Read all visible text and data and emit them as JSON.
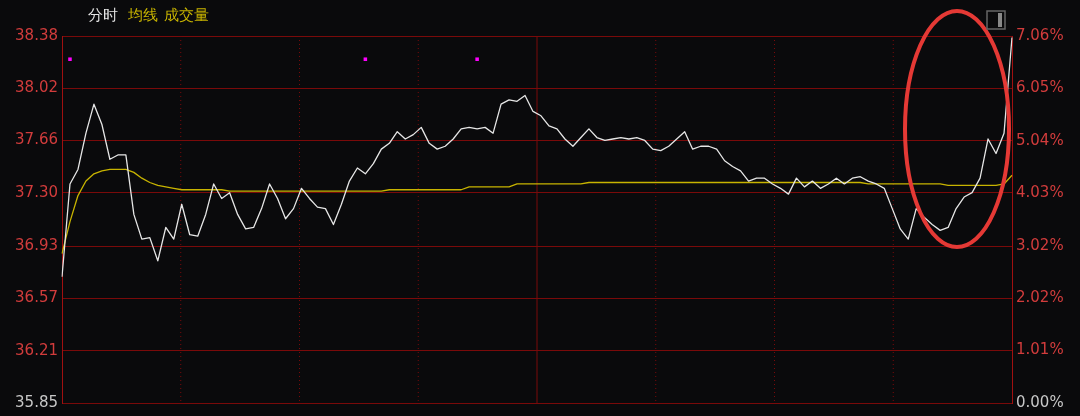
{
  "chart_data": {
    "type": "line",
    "categories": [
      null,
      null,
      null,
      null,
      null,
      null,
      null,
      null,
      null,
      null,
      null,
      null,
      null,
      null,
      null,
      null,
      null,
      null,
      null,
      null,
      null,
      null,
      null,
      null,
      null,
      null,
      null,
      null,
      null,
      null,
      null,
      null,
      null,
      null,
      null,
      null,
      null,
      null,
      null,
      null,
      null,
      null,
      null,
      null,
      null,
      null,
      null,
      null,
      null,
      null,
      null,
      null,
      null,
      null,
      null,
      null,
      null,
      null,
      null,
      null,
      null,
      null,
      null,
      null,
      null,
      null,
      null,
      null,
      null,
      null,
      null,
      null,
      null,
      null,
      null,
      null,
      null,
      null,
      null,
      null,
      null,
      null,
      null,
      null,
      null,
      null,
      null,
      null,
      null,
      null,
      null,
      null,
      null,
      null,
      null,
      null,
      null,
      null,
      null,
      null,
      null,
      null,
      null,
      null,
      null,
      null,
      null,
      null,
      null,
      null,
      null,
      null,
      null,
      null,
      null,
      null,
      null,
      null,
      null,
      null
    ],
    "series": [
      {
        "name": "分时",
        "color": "#e6e6e6",
        "values": [
          36.72,
          37.36,
          37.46,
          37.71,
          37.91,
          37.77,
          37.53,
          37.56,
          37.56,
          37.15,
          36.98,
          36.99,
          36.83,
          37.06,
          36.98,
          37.22,
          37.01,
          37.0,
          37.15,
          37.36,
          37.26,
          37.3,
          37.15,
          37.05,
          37.06,
          37.19,
          37.36,
          37.26,
          37.12,
          37.19,
          37.33,
          37.26,
          37.2,
          37.19,
          37.08,
          37.22,
          37.38,
          37.47,
          37.43,
          37.5,
          37.6,
          37.64,
          37.72,
          37.67,
          37.7,
          37.75,
          37.64,
          37.6,
          37.62,
          37.67,
          37.74,
          37.75,
          37.74,
          37.75,
          37.71,
          37.91,
          37.94,
          37.93,
          37.97,
          37.86,
          37.83,
          37.76,
          37.74,
          37.67,
          37.62,
          37.68,
          37.74,
          37.68,
          37.66,
          37.67,
          37.68,
          37.67,
          37.68,
          37.66,
          37.6,
          37.59,
          37.62,
          37.67,
          37.72,
          37.6,
          37.62,
          37.62,
          37.6,
          37.52,
          37.48,
          37.45,
          37.38,
          37.4,
          37.4,
          37.36,
          37.33,
          37.29,
          37.4,
          37.34,
          37.38,
          37.33,
          37.36,
          37.4,
          37.36,
          37.4,
          37.41,
          37.38,
          37.36,
          37.33,
          37.19,
          37.05,
          36.98,
          37.19,
          37.13,
          37.08,
          37.04,
          37.06,
          37.19,
          37.27,
          37.3,
          37.4,
          37.67,
          37.57,
          37.71,
          38.37
        ]
      },
      {
        "name": "均线",
        "color": "#c8b400",
        "values": [
          36.88,
          37.1,
          37.28,
          37.38,
          37.43,
          37.45,
          37.46,
          37.46,
          37.46,
          37.44,
          37.4,
          37.37,
          37.35,
          37.34,
          37.33,
          37.32,
          37.32,
          37.32,
          37.32,
          37.32,
          37.32,
          37.31,
          37.31,
          37.31,
          37.31,
          37.31,
          37.31,
          37.31,
          37.31,
          37.31,
          37.31,
          37.31,
          37.31,
          37.31,
          37.31,
          37.31,
          37.31,
          37.31,
          37.31,
          37.31,
          37.31,
          37.32,
          37.32,
          37.32,
          37.32,
          37.32,
          37.32,
          37.32,
          37.32,
          37.32,
          37.32,
          37.34,
          37.34,
          37.34,
          37.34,
          37.34,
          37.34,
          37.36,
          37.36,
          37.36,
          37.36,
          37.36,
          37.36,
          37.36,
          37.36,
          37.36,
          37.37,
          37.37,
          37.37,
          37.37,
          37.37,
          37.37,
          37.37,
          37.37,
          37.37,
          37.37,
          37.37,
          37.37,
          37.37,
          37.37,
          37.37,
          37.37,
          37.37,
          37.37,
          37.37,
          37.37,
          37.37,
          37.37,
          37.37,
          37.37,
          37.37,
          37.37,
          37.37,
          37.37,
          37.37,
          37.37,
          37.37,
          37.37,
          37.37,
          37.37,
          37.37,
          37.36,
          37.36,
          37.36,
          37.36,
          37.36,
          37.36,
          37.36,
          37.36,
          37.36,
          37.36,
          37.35,
          37.35,
          37.35,
          37.35,
          37.35,
          37.35,
          37.35,
          37.36,
          37.42
        ]
      },
      {
        "type": "scatter",
        "color": "#ff00ff",
        "marker": "square",
        "values": [
          null,
          38.22,
          null,
          null,
          null,
          null,
          null,
          null,
          null,
          null,
          null,
          null,
          null,
          null,
          null,
          null,
          null,
          null,
          null,
          null,
          null,
          null,
          null,
          null,
          null,
          null,
          null,
          null,
          null,
          null,
          null,
          null,
          null,
          null,
          null,
          null,
          null,
          null,
          38.22,
          null,
          null,
          null,
          null,
          null,
          null,
          null,
          null,
          null,
          null,
          null,
          null,
          null,
          38.22,
          null,
          null,
          null,
          null,
          null,
          null,
          null,
          null,
          null,
          null,
          null,
          null,
          null,
          null,
          null,
          null,
          null,
          null,
          null,
          null,
          null,
          null,
          null,
          null,
          null,
          null,
          null,
          null,
          null,
          null,
          null,
          null,
          null,
          null,
          null,
          null,
          null,
          null,
          null,
          null,
          null,
          null,
          null,
          null,
          null,
          null,
          null,
          null,
          null,
          null,
          null,
          null,
          null,
          null,
          null,
          null,
          null,
          null,
          null,
          null,
          null,
          null,
          null,
          null,
          null,
          null,
          null
        ]
      }
    ],
    "ylim": [
      35.85,
      38.38
    ],
    "yticks": [
      35.85,
      36.21,
      36.57,
      36.93,
      {
        "value": 37.3,
        "label": "37.30"
      },
      37.66,
      38.02,
      38.38
    ],
    "y2lim": [
      0,
      7.06
    ],
    "y2ticks": [
      {
        "value": 0,
        "label": "0.00%"
      },
      {
        "value": 1.01,
        "label": "1.01%"
      },
      {
        "value": 2.02,
        "label": "2.02%"
      },
      {
        "value": 3.02,
        "label": "3.02%"
      },
      {
        "value": 4.03,
        "label": "4.03%"
      },
      {
        "value": 5.04,
        "label": "5.04%"
      },
      {
        "value": 6.05,
        "label": "6.05%"
      },
      {
        "value": 7.06,
        "label": "7.06%"
      }
    ],
    "annotations": [
      "成交量"
    ],
    "grid": true,
    "legend": "top left",
    "marker": "none",
    "line_style": "solid"
  }
}
